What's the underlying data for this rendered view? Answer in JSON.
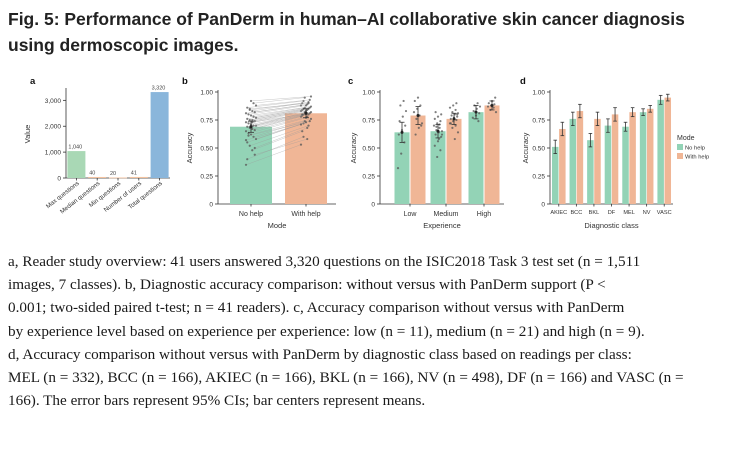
{
  "figure": {
    "title": "Fig. 5: Performance of PanDerm in human–AI collaborative skin cancer diagnosis using dermoscopic images."
  },
  "caption": {
    "lines": [
      "a, Reader study overview: 41 users answered 3,320 questions on the ISIC2018 Task 3 test set (n = 1,511",
      "images, 7 classes). b, Diagnostic accuracy comparison: without versus with PanDerm support (P <",
      "0.001; two-sided paired t-test; n = 41 readers). c, Accuracy comparison without versus with PanDerm",
      "by experience level based on experience per experience: low (n = 11), medium (n = 21) and high (n = 9).",
      "d, Accuracy comparison without versus with PanDerm by diagnostic class based on readings per class:",
      "MEL (n = 332), BCC (n = 166), AKIEC (n = 166), BKL (n = 166), NV (n = 498), DF (n = 166) and VASC (n =",
      "166). The error bars represent 95% CIs; bar centers represent means."
    ]
  },
  "colors": {
    "no_help": "#93d3b6",
    "with_help": "#f0b696",
    "overview_blue": "#8ab6db",
    "overview_orange": "#f3c29f",
    "overview_green": "#a9d8b5",
    "axis": "#333333"
  },
  "chart_data": [
    {
      "panel": "a",
      "type": "bar",
      "categories": [
        "Max questions",
        "Median questions",
        "Min questions",
        "Number of users",
        "Total questions"
      ],
      "values": [
        1040,
        40,
        20,
        41,
        3320
      ],
      "value_labels": [
        "1,040",
        "40",
        "20",
        "41",
        "3,320"
      ],
      "ylabel": "Value",
      "ylim": [
        0,
        3400
      ],
      "yticks": [
        0,
        1000,
        2000,
        3000
      ],
      "ytick_labels": [
        "0",
        "1,000",
        "2,000",
        "3,000"
      ]
    },
    {
      "panel": "b",
      "type": "bar",
      "categories": [
        "No help",
        "With help"
      ],
      "values": [
        0.69,
        0.81
      ],
      "ci": [
        [
          0.64,
          0.74
        ],
        [
          0.77,
          0.85
        ]
      ],
      "xlabel": "Mode",
      "ylabel": "Accuracy",
      "ylim": [
        0,
        1.0
      ],
      "yticks": [
        0,
        0.25,
        0.5,
        0.75,
        1.0
      ],
      "ytick_labels": [
        "0",
        "0.25",
        "0.50",
        "0.75",
        "1.00"
      ],
      "paired_points": [
        [
          0.35,
          0.53
        ],
        [
          0.44,
          0.58
        ],
        [
          0.48,
          0.65
        ],
        [
          0.52,
          0.7
        ],
        [
          0.55,
          0.72
        ],
        [
          0.58,
          0.74
        ],
        [
          0.6,
          0.74
        ],
        [
          0.62,
          0.76
        ],
        [
          0.63,
          0.77
        ],
        [
          0.65,
          0.78
        ],
        [
          0.66,
          0.78
        ],
        [
          0.67,
          0.79
        ],
        [
          0.68,
          0.8
        ],
        [
          0.69,
          0.8
        ],
        [
          0.7,
          0.81
        ],
        [
          0.7,
          0.82
        ],
        [
          0.71,
          0.82
        ],
        [
          0.72,
          0.83
        ],
        [
          0.73,
          0.83
        ],
        [
          0.74,
          0.84
        ],
        [
          0.75,
          0.84
        ],
        [
          0.75,
          0.85
        ],
        [
          0.76,
          0.85
        ],
        [
          0.77,
          0.86
        ],
        [
          0.78,
          0.86
        ],
        [
          0.79,
          0.87
        ],
        [
          0.8,
          0.88
        ],
        [
          0.81,
          0.88
        ],
        [
          0.82,
          0.89
        ],
        [
          0.83,
          0.9
        ],
        [
          0.84,
          0.91
        ],
        [
          0.86,
          0.92
        ],
        [
          0.88,
          0.93
        ],
        [
          0.9,
          0.95
        ],
        [
          0.92,
          0.96
        ],
        [
          0.61,
          0.73
        ],
        [
          0.57,
          0.71
        ],
        [
          0.5,
          0.68
        ],
        [
          0.73,
          0.8
        ],
        [
          0.85,
          0.9
        ],
        [
          0.4,
          0.6
        ]
      ]
    },
    {
      "panel": "c",
      "type": "bar",
      "categories": [
        "Low",
        "Medium",
        "High"
      ],
      "series": [
        {
          "values": [
            0.64,
            0.65,
            0.82
          ],
          "ci": [
            [
              0.55,
              0.73
            ],
            [
              0.59,
              0.71
            ],
            [
              0.76,
              0.88
            ]
          ],
          "points": [
            [
              0.32,
              0.45,
              0.55,
              0.62,
              0.66,
              0.7,
              0.74,
              0.78,
              0.83,
              0.88,
              0.92
            ],
            [
              0.42,
              0.48,
              0.52,
              0.56,
              0.6,
              0.62,
              0.64,
              0.65,
              0.66,
              0.68,
              0.7,
              0.72,
              0.74,
              0.76,
              0.78,
              0.8,
              0.82,
              0.58,
              0.62,
              0.69,
              0.71
            ],
            [
              0.74,
              0.77,
              0.79,
              0.81,
              0.83,
              0.85,
              0.87,
              0.88,
              0.9
            ]
          ]
        },
        {
          "values": [
            0.79,
            0.76,
            0.88
          ],
          "ci": [
            [
              0.71,
              0.87
            ],
            [
              0.71,
              0.81
            ],
            [
              0.84,
              0.92
            ]
          ],
          "points": [
            [
              0.62,
              0.68,
              0.72,
              0.76,
              0.79,
              0.82,
              0.85,
              0.88,
              0.92,
              0.95,
              0.7
            ],
            [
              0.58,
              0.64,
              0.68,
              0.7,
              0.72,
              0.74,
              0.75,
              0.76,
              0.77,
              0.78,
              0.79,
              0.8,
              0.81,
              0.82,
              0.84,
              0.86,
              0.88,
              0.9,
              0.72,
              0.76,
              0.8
            ],
            [
              0.82,
              0.84,
              0.86,
              0.87,
              0.88,
              0.89,
              0.9,
              0.92,
              0.95
            ]
          ]
        }
      ],
      "xlabel": "Experience",
      "ylabel": "Accuracy",
      "ylim": [
        0,
        1.0
      ],
      "yticks": [
        0,
        0.25,
        0.5,
        0.75,
        1.0
      ],
      "ytick_labels": [
        "0",
        "0.25",
        "0.50",
        "0.75",
        "1.00"
      ]
    },
    {
      "panel": "d",
      "type": "bar",
      "categories": [
        "AKIEC",
        "BCC",
        "BKL",
        "DF",
        "MEL",
        "NV",
        "VASC"
      ],
      "series": [
        {
          "name": "No help",
          "values": [
            0.51,
            0.76,
            0.57,
            0.7,
            0.69,
            0.82,
            0.93
          ],
          "ci": [
            [
              0.45,
              0.57
            ],
            [
              0.7,
              0.82
            ],
            [
              0.51,
              0.63
            ],
            [
              0.64,
              0.76
            ],
            [
              0.65,
              0.73
            ],
            [
              0.79,
              0.85
            ],
            [
              0.89,
              0.97
            ]
          ]
        },
        {
          "name": "With help",
          "values": [
            0.67,
            0.83,
            0.76,
            0.8,
            0.82,
            0.85,
            0.95
          ],
          "ci": [
            [
              0.61,
              0.73
            ],
            [
              0.77,
              0.89
            ],
            [
              0.7,
              0.82
            ],
            [
              0.74,
              0.86
            ],
            [
              0.78,
              0.86
            ],
            [
              0.82,
              0.88
            ],
            [
              0.92,
              0.98
            ]
          ]
        }
      ],
      "xlabel": "Diagnostic class",
      "ylabel": "Accuracy",
      "ylim": [
        0,
        1.0
      ],
      "yticks": [
        0,
        0.25,
        0.5,
        0.75,
        1.0
      ],
      "ytick_labels": [
        "0",
        "0.25",
        "0.50",
        "0.75",
        "1.00"
      ],
      "legend": {
        "title": "Mode",
        "position": "right"
      }
    }
  ],
  "panel_labels": [
    "a",
    "b",
    "c",
    "d"
  ]
}
